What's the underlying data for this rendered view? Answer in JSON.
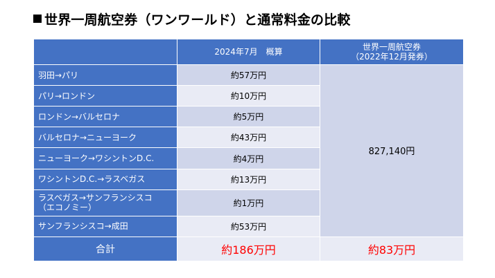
{
  "title": "世界一周航空券（ワンワールド）と通常料金の比較",
  "header": {
    "col1": "",
    "col2": "2024年7月　概算",
    "col3_line1": "世界一周航空券",
    "col3_line2": "（2022年12月発券）"
  },
  "rows": [
    {
      "route": "羽田→パリ",
      "price": "約57万円"
    },
    {
      "route": "パリ→ロンドン",
      "price": "約10万円"
    },
    {
      "route": "ロンドン→バルセロナ",
      "price": "約5万円"
    },
    {
      "route": "バルセロナ→ニューヨーク",
      "price": "約43万円"
    },
    {
      "route": "ニューヨーク→ワシントンD.C.",
      "price": "約4万円"
    },
    {
      "route": "ワシントンD.C.→ラスベガス",
      "price": "約13万円"
    },
    {
      "route_line1": "ラスベガス→サンフランシスコ",
      "route_line2": "（エコノミー）",
      "price": "約1万円"
    },
    {
      "route": "サンフランシスコ→成田",
      "price": "約53万円"
    }
  ],
  "rtw_price": "827,140円",
  "total": {
    "label": "合計",
    "regular": "約186万円",
    "rtw": "約83万円"
  }
}
